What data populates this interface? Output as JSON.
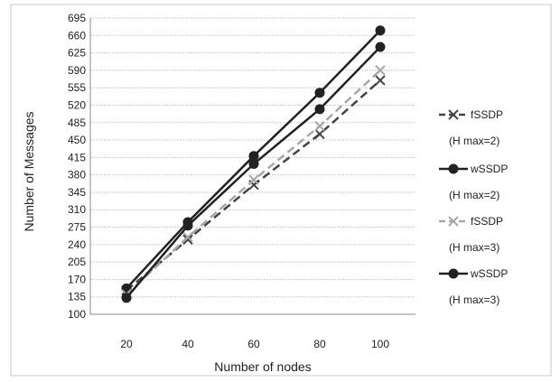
{
  "chart_data": {
    "type": "line",
    "title": "",
    "xlabel": "Number of nodes",
    "ylabel": "Number of Messages",
    "x": [
      20,
      40,
      60,
      80,
      100
    ],
    "y_ticks": [
      100,
      135,
      170,
      205,
      240,
      275,
      310,
      345,
      380,
      415,
      450,
      485,
      520,
      555,
      590,
      625,
      660,
      695
    ],
    "ylim": [
      100,
      695
    ],
    "grid": true,
    "legend_position": "right",
    "series": [
      {
        "name": "fSSDP",
        "sub": "(H max=2)",
        "color": "#444444",
        "dash": true,
        "marker": "x",
        "values": [
          148,
          250,
          360,
          462,
          570
        ]
      },
      {
        "name": "wSSDP",
        "sub": "(H max=2)",
        "color": "#222222",
        "dash": false,
        "marker": "circle",
        "values": [
          152,
          285,
          418,
          545,
          670
        ]
      },
      {
        "name": "fSSDP",
        "sub": "(H max=3)",
        "color": "#a8a8a8",
        "dash": true,
        "marker": "x",
        "values": [
          140,
          255,
          370,
          478,
          590
        ]
      },
      {
        "name": "wSSDP",
        "sub": "(H max=3)",
        "color": "#222222",
        "dash": false,
        "marker": "circle",
        "values": [
          133,
          278,
          402,
          512,
          637
        ]
      }
    ]
  }
}
